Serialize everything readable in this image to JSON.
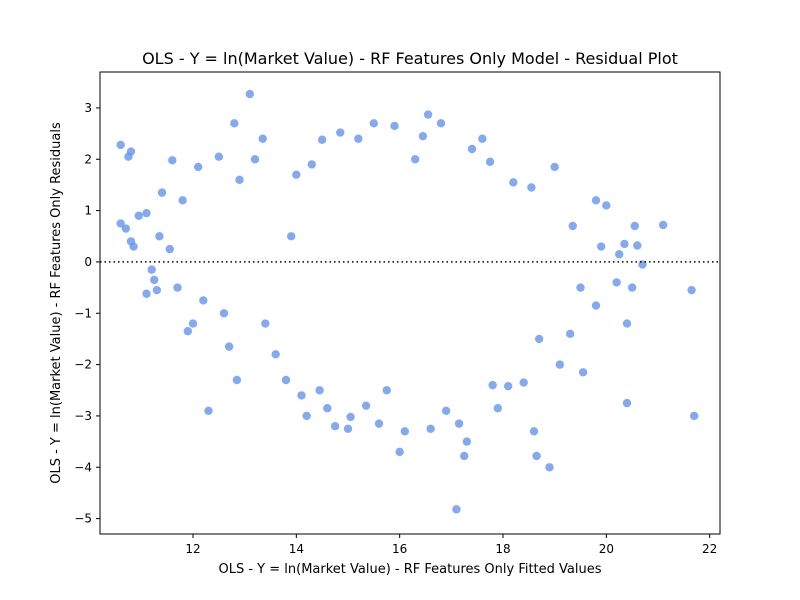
{
  "chart_data": {
    "type": "scatter",
    "title": "OLS - Y = ln(Market Value) - RF Features Only Model - Residual Plot",
    "xlabel": "OLS - Y = ln(Market Value) - RF Features Only Fitted Values",
    "ylabel": "OLS - Y = ln(Market Value) - RF Features Only Residuals",
    "xlim": [
      10.2,
      22.2
    ],
    "ylim": [
      -5.3,
      3.7
    ],
    "x_ticks": [
      12,
      14,
      16,
      18,
      20,
      22
    ],
    "y_ticks": [
      3,
      2,
      1,
      0,
      -1,
      -2,
      -3,
      -4,
      -5
    ],
    "x_tick_labels": [
      "12",
      "14",
      "16",
      "18",
      "20",
      "22"
    ],
    "y_tick_labels": [
      "3",
      "2",
      "1",
      "0",
      "−1",
      "−2",
      "−3",
      "−4",
      "−5"
    ],
    "reference_line": {
      "y": 0,
      "style": "dotted",
      "color": "#000000"
    },
    "grid": false,
    "legend": "none",
    "point_color": "#6495ED",
    "point_alpha": 0.8,
    "series": [
      {
        "values": [
          {
            "x": 10.6,
            "y": 2.28
          },
          {
            "x": 10.75,
            "y": 2.05
          },
          {
            "x": 10.8,
            "y": 2.15
          },
          {
            "x": 10.6,
            "y": 0.75
          },
          {
            "x": 10.7,
            "y": 0.65
          },
          {
            "x": 10.8,
            "y": 0.4
          },
          {
            "x": 10.85,
            "y": 0.3
          },
          {
            "x": 10.95,
            "y": 0.9
          },
          {
            "x": 11.1,
            "y": 0.95
          },
          {
            "x": 11.2,
            "y": -0.15
          },
          {
            "x": 11.25,
            "y": -0.35
          },
          {
            "x": 11.3,
            "y": -0.55
          },
          {
            "x": 11.1,
            "y": -0.62
          },
          {
            "x": 11.35,
            "y": 0.5
          },
          {
            "x": 11.4,
            "y": 1.35
          },
          {
            "x": 11.6,
            "y": 1.98
          },
          {
            "x": 11.55,
            "y": 0.25
          },
          {
            "x": 11.7,
            "y": -0.5
          },
          {
            "x": 11.8,
            "y": 1.2
          },
          {
            "x": 11.9,
            "y": -1.35
          },
          {
            "x": 12.0,
            "y": -1.2
          },
          {
            "x": 12.1,
            "y": 1.85
          },
          {
            "x": 12.2,
            "y": -0.75
          },
          {
            "x": 12.3,
            "y": -2.9
          },
          {
            "x": 12.5,
            "y": 2.05
          },
          {
            "x": 12.6,
            "y": -1.0
          },
          {
            "x": 12.7,
            "y": -1.65
          },
          {
            "x": 12.8,
            "y": 2.7
          },
          {
            "x": 12.85,
            "y": -2.3
          },
          {
            "x": 12.9,
            "y": 1.6
          },
          {
            "x": 13.1,
            "y": 3.27
          },
          {
            "x": 13.2,
            "y": 2.0
          },
          {
            "x": 13.35,
            "y": 2.4
          },
          {
            "x": 13.4,
            "y": -1.2
          },
          {
            "x": 13.6,
            "y": -1.8
          },
          {
            "x": 13.8,
            "y": -2.3
          },
          {
            "x": 13.9,
            "y": 0.5
          },
          {
            "x": 14.0,
            "y": 1.7
          },
          {
            "x": 14.1,
            "y": -2.6
          },
          {
            "x": 14.2,
            "y": -3.0
          },
          {
            "x": 14.3,
            "y": 1.9
          },
          {
            "x": 14.45,
            "y": -2.5
          },
          {
            "x": 14.5,
            "y": 2.38
          },
          {
            "x": 14.6,
            "y": -2.85
          },
          {
            "x": 14.75,
            "y": -3.2
          },
          {
            "x": 14.85,
            "y": 2.52
          },
          {
            "x": 15.0,
            "y": -3.25
          },
          {
            "x": 15.05,
            "y": -3.02
          },
          {
            "x": 15.2,
            "y": 2.4
          },
          {
            "x": 15.35,
            "y": -2.8
          },
          {
            "x": 15.5,
            "y": 2.7
          },
          {
            "x": 15.6,
            "y": -3.15
          },
          {
            "x": 15.75,
            "y": -2.5
          },
          {
            "x": 15.9,
            "y": 2.65
          },
          {
            "x": 16.0,
            "y": -3.7
          },
          {
            "x": 16.1,
            "y": -3.3
          },
          {
            "x": 16.3,
            "y": 2.0
          },
          {
            "x": 16.45,
            "y": 2.45
          },
          {
            "x": 16.55,
            "y": 2.87
          },
          {
            "x": 16.6,
            "y": -3.25
          },
          {
            "x": 16.8,
            "y": 2.7
          },
          {
            "x": 16.9,
            "y": -2.9
          },
          {
            "x": 17.1,
            "y": -4.82
          },
          {
            "x": 17.15,
            "y": -3.15
          },
          {
            "x": 17.25,
            "y": -3.78
          },
          {
            "x": 17.3,
            "y": -3.5
          },
          {
            "x": 17.4,
            "y": 2.2
          },
          {
            "x": 17.6,
            "y": 2.4
          },
          {
            "x": 17.75,
            "y": 1.95
          },
          {
            "x": 17.8,
            "y": -2.4
          },
          {
            "x": 17.9,
            "y": -2.85
          },
          {
            "x": 18.1,
            "y": -2.42
          },
          {
            "x": 18.2,
            "y": 1.55
          },
          {
            "x": 18.4,
            "y": -2.35
          },
          {
            "x": 18.55,
            "y": 1.45
          },
          {
            "x": 18.6,
            "y": -3.3
          },
          {
            "x": 18.65,
            "y": -3.78
          },
          {
            "x": 18.7,
            "y": -1.5
          },
          {
            "x": 18.9,
            "y": -4.0
          },
          {
            "x": 19.0,
            "y": 1.85
          },
          {
            "x": 19.1,
            "y": -2.0
          },
          {
            "x": 19.3,
            "y": -1.4
          },
          {
            "x": 19.35,
            "y": 0.7
          },
          {
            "x": 19.5,
            "y": -0.5
          },
          {
            "x": 19.55,
            "y": -2.15
          },
          {
            "x": 19.8,
            "y": 1.2
          },
          {
            "x": 19.8,
            "y": -0.85
          },
          {
            "x": 19.9,
            "y": 0.3
          },
          {
            "x": 20.0,
            "y": 1.1
          },
          {
            "x": 20.2,
            "y": -0.4
          },
          {
            "x": 20.25,
            "y": 0.15
          },
          {
            "x": 20.35,
            "y": 0.35
          },
          {
            "x": 20.4,
            "y": -1.2
          },
          {
            "x": 20.4,
            "y": -2.75
          },
          {
            "x": 20.5,
            "y": -0.5
          },
          {
            "x": 20.55,
            "y": 0.7
          },
          {
            "x": 20.6,
            "y": 0.32
          },
          {
            "x": 20.7,
            "y": -0.05
          },
          {
            "x": 21.1,
            "y": 0.72
          },
          {
            "x": 21.65,
            "y": -0.55
          },
          {
            "x": 21.7,
            "y": -3.0
          }
        ]
      }
    ]
  }
}
